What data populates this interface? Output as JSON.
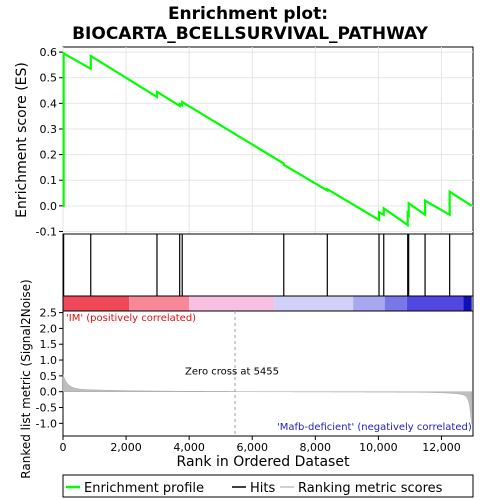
{
  "chart_data": {
    "type": "line",
    "title_line1": "Enrichment plot:",
    "title_line2": "BIOCARTA_BCELLSURVIVAL_PATHWAY",
    "xlabel": "Rank in Ordered Dataset",
    "ylabel_top": "Enrichment score (ES)",
    "ylabel_bottom": "Ranked list metric (Signal2Noise)",
    "xlim": [
      0,
      13000
    ],
    "es_ylim": [
      -0.11,
      0.62
    ],
    "metric_ylim": [
      -1.4,
      2.55
    ],
    "x_ticks": [
      0,
      2000,
      4000,
      6000,
      8000,
      10000,
      12000
    ],
    "x_tick_labels": [
      "0",
      "2,000",
      "4,000",
      "6,000",
      "8,000",
      "10,000",
      "12,000"
    ],
    "es_ticks": [
      -0.1,
      0.0,
      0.1,
      0.2,
      0.3,
      0.4,
      0.5,
      0.6
    ],
    "es_tick_labels": [
      "-0.1",
      "0.0",
      "0.1",
      "0.2",
      "0.3",
      "0.4",
      "0.5",
      "0.6"
    ],
    "metric_ticks": [
      -1.0,
      -0.5,
      0.0,
      0.5,
      1.0,
      1.5,
      2.0,
      2.5
    ],
    "metric_tick_labels": [
      "-1.0",
      "-0.5",
      "0.0",
      "0.5",
      "1.0",
      "1.5",
      "2.0",
      "2.5"
    ],
    "hits": [
      20,
      880,
      2980,
      3700,
      3780,
      7000,
      8380,
      10020,
      10170,
      10930,
      10960,
      11480,
      12260
    ],
    "es_profile": {
      "x": [
        0,
        20,
        20,
        880,
        880,
        2980,
        2980,
        3700,
        3700,
        3780,
        3780,
        7000,
        7000,
        8380,
        8380,
        10020,
        10020,
        10170,
        10170,
        10930,
        10930,
        10960,
        10960,
        11480,
        11480,
        12260,
        12260,
        12960
      ],
      "y": [
        0.0,
        0.0,
        0.595,
        0.535,
        0.585,
        0.425,
        0.445,
        0.39,
        0.398,
        0.392,
        0.405,
        0.165,
        0.16,
        0.06,
        0.065,
        -0.055,
        -0.025,
        -0.035,
        -0.01,
        -0.075,
        -0.03,
        -0.035,
        0.01,
        -0.035,
        0.02,
        -0.035,
        0.055,
        0.0
      ]
    },
    "zero_cross_label": "Zero cross at 5455",
    "zero_cross_x": 5455,
    "pos_label": "'IM' (positively correlated)",
    "neg_label": "'Mafb-deficient' (negatively correlated)",
    "legend": [
      {
        "label": "Enrichment profile",
        "color": "#00ff00"
      },
      {
        "label": "Hits",
        "color": "#000000"
      },
      {
        "label": "Ranking metric scores",
        "color": "#c0c0c0"
      }
    ],
    "colors": {
      "es_line": "#00ff00",
      "metric_fill": "#bebebe",
      "pos_label": "#e01010",
      "neg_label": "#2020c0",
      "zero_line": "#a0a0a0"
    },
    "bar_segments": [
      {
        "x0": 0,
        "x1": 2100,
        "color": "#f04858"
      },
      {
        "x0": 2100,
        "x1": 4000,
        "color": "#f88898"
      },
      {
        "x0": 4000,
        "x1": 6700,
        "color": "#f8c0e0"
      },
      {
        "x0": 6700,
        "x1": 9200,
        "color": "#d0d0f8"
      },
      {
        "x0": 9200,
        "x1": 10200,
        "color": "#a8a8f0"
      },
      {
        "x0": 10200,
        "x1": 10900,
        "color": "#7878e8"
      },
      {
        "x0": 10900,
        "x1": 12700,
        "color": "#5048e0"
      },
      {
        "x0": 12700,
        "x1": 12960,
        "color": "#1010b8"
      }
    ]
  }
}
